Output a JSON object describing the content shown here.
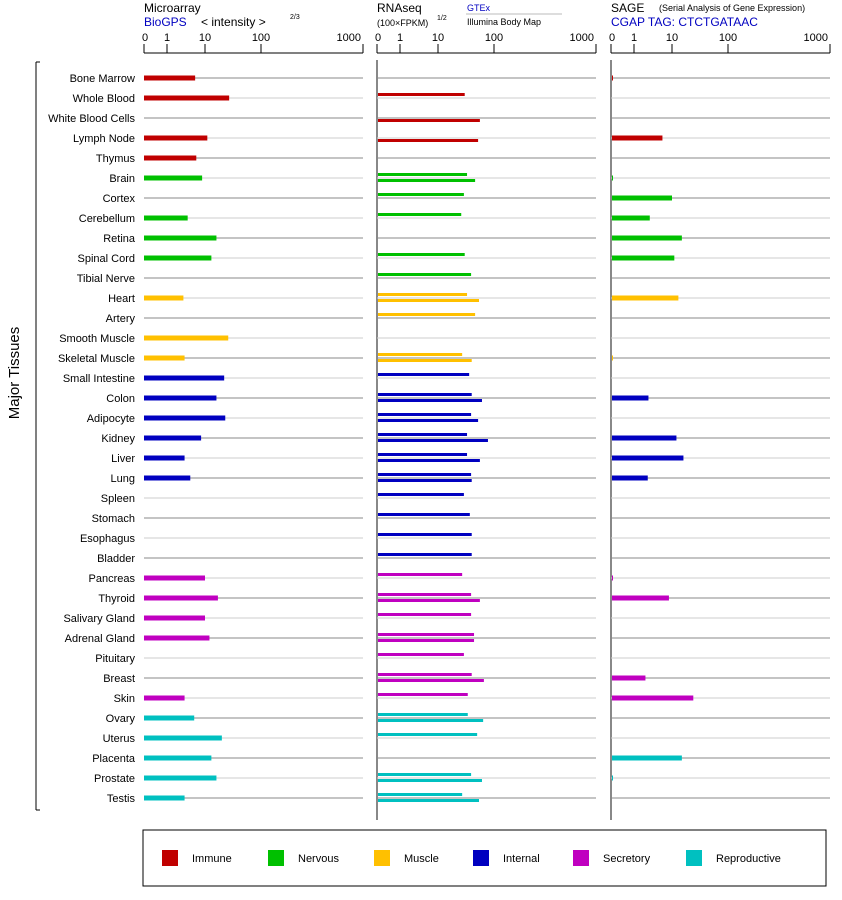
{
  "chart_data": {
    "type": "bar",
    "y_label": "Major Tissues",
    "panels": [
      {
        "key": "ma",
        "title": "Microarray",
        "source": "BioGPS",
        "subtitle": "< intensity >",
        "exponent": "2/3",
        "ticks": [
          "0",
          "1",
          "10",
          "100",
          "1000"
        ]
      },
      {
        "key": "rna",
        "title": "RNAseq",
        "subtitle": "(100×FPKM)",
        "exponent": "1/2",
        "source_top": "GTEx",
        "source_bottom": "Illumina Body Map",
        "ticks": [
          "0",
          "1",
          "10",
          "100",
          "1000"
        ]
      },
      {
        "key": "sage",
        "title": "SAGE",
        "note": "(Serial Analysis of Gene Expression)",
        "source": "CGAP TAG: CTCTGATAAC",
        "ticks": [
          "0",
          "1",
          "10",
          "100",
          "1000"
        ]
      }
    ],
    "groups": {
      "Immune": {
        "color": "#c00000"
      },
      "Nervous": {
        "color": "#00c000"
      },
      "Muscle": {
        "color": "#ffc000"
      },
      "Internal": {
        "color": "#0000c0"
      },
      "Secretory": {
        "color": "#c000c0"
      },
      "Reproductive": {
        "color": "#00c0c0"
      }
    },
    "legend": [
      "Immune",
      "Nervous",
      "Muscle",
      "Internal",
      "Secretory",
      "Reproductive"
    ],
    "tissues": [
      {
        "name": "Bone Marrow",
        "group": "Immune",
        "ma": 5.5,
        "gtex": null,
        "illumina": null,
        "sage": 0.05
      },
      {
        "name": "Whole Blood",
        "group": "Immune",
        "ma": 27,
        "gtex": 30,
        "illumina": null,
        "sage": null
      },
      {
        "name": "White Blood Cells",
        "group": "Immune",
        "ma": null,
        "gtex": null,
        "illumina": 56,
        "sage": null
      },
      {
        "name": "Lymph Node",
        "group": "Immune",
        "ma": 11,
        "gtex": null,
        "illumina": 52,
        "sage": 5.6
      },
      {
        "name": "Thymus",
        "group": "Immune",
        "ma": 5.9,
        "gtex": null,
        "illumina": null,
        "sage": null
      },
      {
        "name": "Brain",
        "group": "Nervous",
        "ma": 8.4,
        "gtex": 33,
        "illumina": 46,
        "sage": 0.05
      },
      {
        "name": "Cortex",
        "group": "Nervous",
        "ma": null,
        "gtex": 29,
        "illumina": null,
        "sage": 10
      },
      {
        "name": "Cerebellum",
        "group": "Nervous",
        "ma": 3.5,
        "gtex": 26,
        "illumina": null,
        "sage": 2.6
      },
      {
        "name": "Retina",
        "group": "Nervous",
        "ma": 16,
        "gtex": null,
        "illumina": null,
        "sage": 15
      },
      {
        "name": "Spinal Cord",
        "group": "Nervous",
        "ma": 13,
        "gtex": 30,
        "illumina": null,
        "sage": 11
      },
      {
        "name": "Tibial Nerve",
        "group": "Nervous",
        "ma": null,
        "gtex": 39,
        "illumina": null,
        "sage": null
      },
      {
        "name": "Heart",
        "group": "Muscle",
        "ma": 2.7,
        "gtex": 33,
        "illumina": 54,
        "sage": 13
      },
      {
        "name": "Artery",
        "group": "Muscle",
        "ma": null,
        "gtex": 46,
        "illumina": null,
        "sage": null
      },
      {
        "name": "Smooth Muscle",
        "group": "Muscle",
        "ma": 26,
        "gtex": null,
        "illumina": null,
        "sage": null
      },
      {
        "name": "Skeletal Muscle",
        "group": "Muscle",
        "ma": 2.9,
        "gtex": 27,
        "illumina": 40,
        "sage": 0.05
      },
      {
        "name": "Small Intestine",
        "group": "Internal",
        "ma": 22,
        "gtex": 36,
        "illumina": null,
        "sage": null
      },
      {
        "name": "Colon",
        "group": "Internal",
        "ma": 16,
        "gtex": 40,
        "illumina": 61,
        "sage": 2.4
      },
      {
        "name": "Adipocyte",
        "group": "Internal",
        "ma": 23,
        "gtex": 39,
        "illumina": 52,
        "sage": null
      },
      {
        "name": "Kidney",
        "group": "Internal",
        "ma": 7.9,
        "gtex": 33,
        "illumina": 78,
        "sage": 12
      },
      {
        "name": "Liver",
        "group": "Internal",
        "ma": 2.9,
        "gtex": 33,
        "illumina": 56,
        "sage": 16
      },
      {
        "name": "Lung",
        "group": "Internal",
        "ma": 4.1,
        "gtex": 39,
        "illumina": 40,
        "sage": 2.3
      },
      {
        "name": "Spleen",
        "group": "Internal",
        "ma": null,
        "gtex": 29,
        "illumina": null,
        "sage": null
      },
      {
        "name": "Stomach",
        "group": "Internal",
        "ma": null,
        "gtex": 37,
        "illumina": null,
        "sage": null
      },
      {
        "name": "Esophagus",
        "group": "Internal",
        "ma": null,
        "gtex": 40,
        "illumina": null,
        "sage": null
      },
      {
        "name": "Bladder",
        "group": "Internal",
        "ma": null,
        "gtex": 40,
        "illumina": null,
        "sage": null
      },
      {
        "name": "Pancreas",
        "group": "Secretory",
        "ma": 10,
        "gtex": 27,
        "illumina": null,
        "sage": 0.05
      },
      {
        "name": "Thyroid",
        "group": "Secretory",
        "ma": 17,
        "gtex": 39,
        "illumina": 56,
        "sage": 8.3
      },
      {
        "name": "Salivary Gland",
        "group": "Secretory",
        "ma": 10,
        "gtex": 39,
        "illumina": null,
        "sage": null
      },
      {
        "name": "Adrenal Gland",
        "group": "Secretory",
        "ma": 12,
        "gtex": 44,
        "illumina": 44,
        "sage": null
      },
      {
        "name": "Pituitary",
        "group": "Secretory",
        "ma": null,
        "gtex": 29,
        "illumina": null,
        "sage": null
      },
      {
        "name": "Breast",
        "group": "Secretory",
        "ma": null,
        "gtex": 40,
        "illumina": 66,
        "sage": 2.0
      },
      {
        "name": "Skin",
        "group": "Secretory",
        "ma": 2.9,
        "gtex": 34,
        "illumina": null,
        "sage": 24
      },
      {
        "name": "Ovary",
        "group": "Reproductive",
        "ma": 5.2,
        "gtex": 34,
        "illumina": 64,
        "sage": null
      },
      {
        "name": "Uterus",
        "group": "Reproductive",
        "ma": 20,
        "gtex": 50,
        "illumina": null,
        "sage": null
      },
      {
        "name": "Placenta",
        "group": "Reproductive",
        "ma": 13,
        "gtex": null,
        "illumina": null,
        "sage": 15
      },
      {
        "name": "Prostate",
        "group": "Reproductive",
        "ma": 16,
        "gtex": 39,
        "illumina": 61,
        "sage": 0.05
      },
      {
        "name": "Testis",
        "group": "Reproductive",
        "ma": 2.9,
        "gtex": 27,
        "illumina": 54,
        "sage": null
      }
    ]
  }
}
